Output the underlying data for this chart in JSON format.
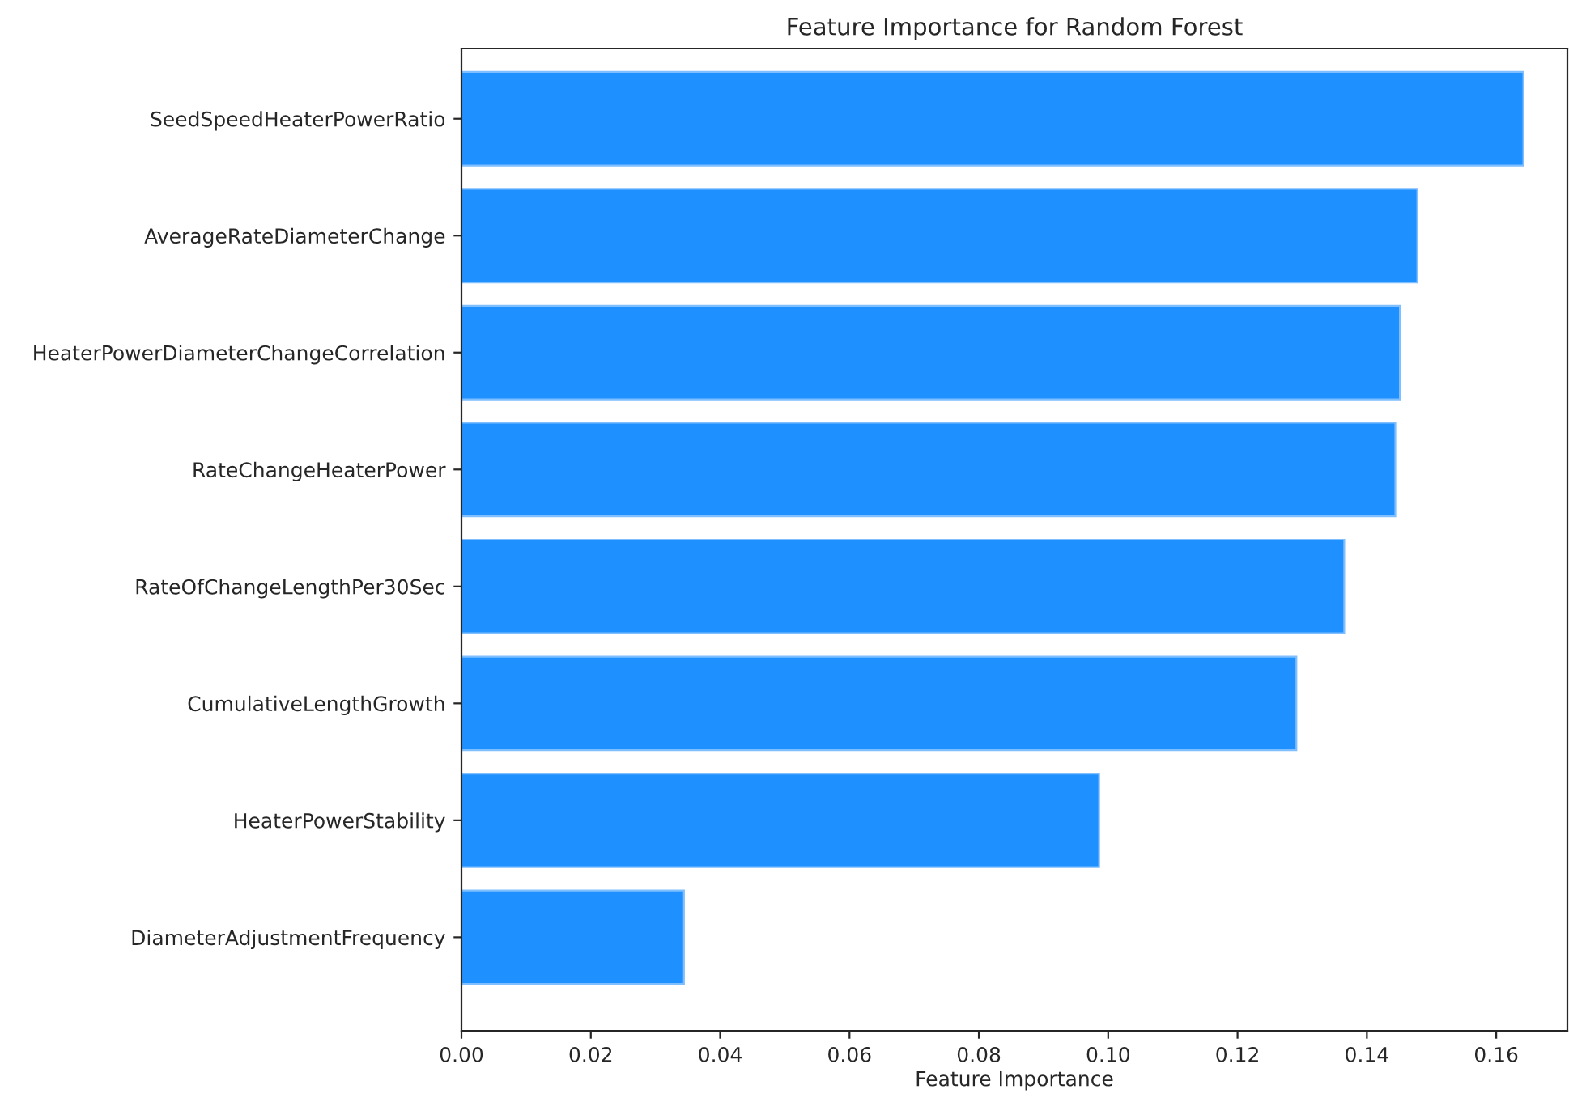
{
  "chart_data": {
    "type": "bar",
    "orientation": "horizontal",
    "title": "Feature Importance for Random Forest",
    "xlabel": "Feature Importance",
    "categories": [
      "SeedSpeedHeaterPowerRatio",
      "AverageRateDiameterChange",
      "HeaterPowerDiameterChangeCorrelation",
      "RateChangeHeaterPower",
      "RateOfChangeLengthPer30Sec",
      "CumulativeLengthGrowth",
      "HeaterPowerStability",
      "DiameterAdjustmentFrequency"
    ],
    "values": [
      0.1642,
      0.1478,
      0.1451,
      0.1444,
      0.1365,
      0.1291,
      0.0986,
      0.0344
    ],
    "color": "#1e90ff",
    "xlim": [
      0,
      0.171
    ],
    "xticks": [
      {
        "value": 0,
        "label": "0.00"
      },
      {
        "value": 0.02,
        "label": "0.02"
      },
      {
        "value": 0.04,
        "label": "0.04"
      },
      {
        "value": 0.06,
        "label": "0.06"
      },
      {
        "value": 0.08,
        "label": "0.08"
      },
      {
        "value": 0.1,
        "label": "0.10"
      },
      {
        "value": 0.12,
        "label": "0.12"
      },
      {
        "value": 0.14,
        "label": "0.14"
      },
      {
        "value": 0.16,
        "label": "0.16"
      }
    ],
    "grid": false,
    "legend": false
  }
}
